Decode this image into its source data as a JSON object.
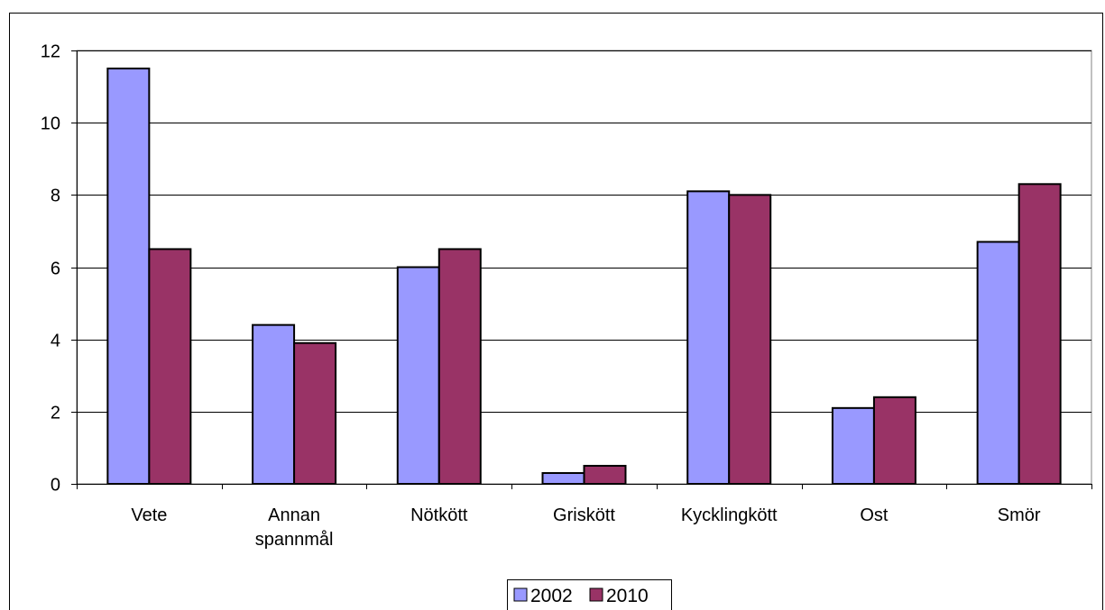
{
  "chart_data": {
    "type": "bar",
    "categories": [
      [
        "Vete"
      ],
      [
        "Annan",
        "spannmål"
      ],
      [
        "Nötkött"
      ],
      [
        "Griskött"
      ],
      [
        "Kycklingkött"
      ],
      [
        "Ost"
      ],
      [
        "Smör"
      ]
    ],
    "series": [
      {
        "name": "2002",
        "color": "#9999ff",
        "values": [
          11.5,
          4.4,
          6.0,
          0.3,
          8.1,
          2.1,
          6.7
        ]
      },
      {
        "name": "2010",
        "color": "#993366",
        "values": [
          6.5,
          3.9,
          6.5,
          0.5,
          8.0,
          2.4,
          8.3
        ]
      }
    ],
    "ylim": [
      0,
      12
    ],
    "yticks": [
      "0",
      "2",
      "4",
      "6",
      "8",
      "10",
      "12"
    ],
    "grid": true,
    "plot_background": "#ffffff",
    "plot_border": "#808080",
    "legend_position": "bottom-center"
  }
}
